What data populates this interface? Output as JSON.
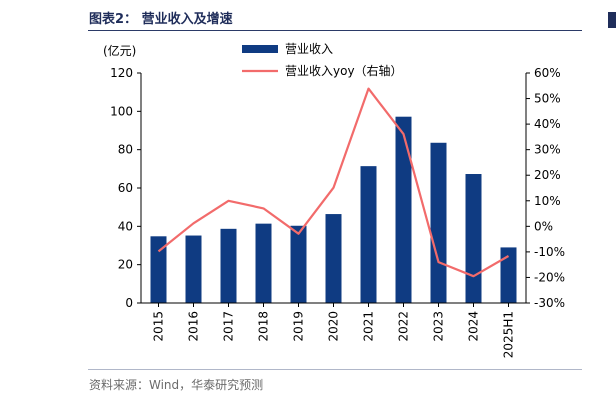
{
  "figure": {
    "title": "图表2：  营业收入及增速",
    "source": "资料来源：Wind，华泰研究预测"
  },
  "chart_data": {
    "type": "bar",
    "categories": [
      "2015",
      "2016",
      "2017",
      "2018",
      "2019",
      "2020",
      "2021",
      "2022",
      "2023",
      "2024",
      "2025H1"
    ],
    "series": [
      {
        "name": "营业收入",
        "type": "bar",
        "axis": "left",
        "color": "#0f3b82",
        "values": [
          34.8,
          35.2,
          38.7,
          41.4,
          40.3,
          46.4,
          71.4,
          97.2,
          83.6,
          67.3,
          29.0
        ]
      },
      {
        "name": "营业收入yoy（右轴）",
        "type": "line",
        "axis": "right",
        "color": "#f26b6b",
        "values": [
          -9.8,
          1.2,
          10.0,
          7.0,
          -2.9,
          15.1,
          53.9,
          36.1,
          -14.0,
          -19.5,
          -11.6
        ]
      }
    ],
    "ylabel": "(亿元)",
    "ylim": [
      0,
      120
    ],
    "yticks": [
      "0",
      "20",
      "40",
      "60",
      "80",
      "100",
      "120"
    ],
    "y2lim": [
      -30,
      60
    ],
    "y2ticks": [
      "-30%",
      "-20%",
      "-10%",
      "0%",
      "10%",
      "20%",
      "30%",
      "40%",
      "50%",
      "60%"
    ],
    "legend_position": "top-center",
    "grid": false
  }
}
